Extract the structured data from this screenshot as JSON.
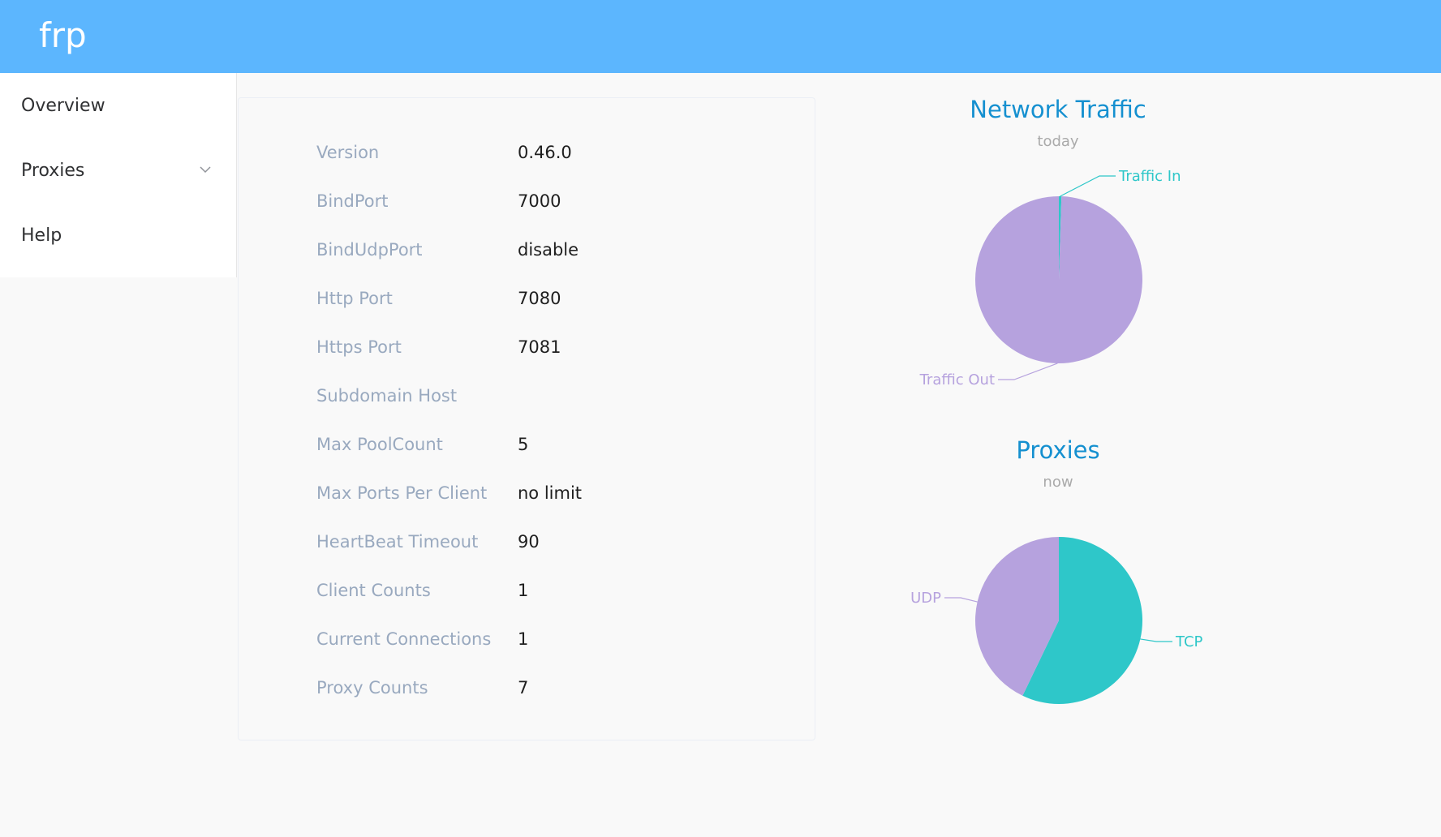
{
  "app": {
    "brand": "frp"
  },
  "sidebar": {
    "items": [
      {
        "label": "Overview"
      },
      {
        "label": "Proxies",
        "icon": "chevron-down-icon"
      },
      {
        "label": "Help"
      }
    ]
  },
  "overview": {
    "rows": [
      {
        "label": "Version",
        "value": "0.46.0"
      },
      {
        "label": "BindPort",
        "value": "7000"
      },
      {
        "label": "BindUdpPort",
        "value": "disable"
      },
      {
        "label": "Http Port",
        "value": "7080"
      },
      {
        "label": "Https Port",
        "value": "7081"
      },
      {
        "label": "Subdomain Host",
        "value": ""
      },
      {
        "label": "Max PoolCount",
        "value": "5"
      },
      {
        "label": "Max Ports Per Client",
        "value": "no limit"
      },
      {
        "label": "HeartBeat Timeout",
        "value": "90"
      },
      {
        "label": "Client Counts",
        "value": "1"
      },
      {
        "label": "Current Connections",
        "value": "1"
      },
      {
        "label": "Proxy Counts",
        "value": "7"
      }
    ]
  },
  "colors": {
    "header": "#5cb6fe",
    "title": "#1590d0",
    "teal": "#2ec7c9",
    "purple": "#b6a2de",
    "label": "#99a9bf"
  },
  "chart_data": [
    {
      "type": "pie",
      "title": "Network Traffic",
      "subtitle": "today",
      "series": [
        {
          "name": "Traffic In",
          "value": 0.5,
          "color": "#2ec7c9"
        },
        {
          "name": "Traffic Out",
          "value": 99.5,
          "color": "#b6a2de"
        }
      ]
    },
    {
      "type": "pie",
      "title": "Proxies",
      "subtitle": "now",
      "series": [
        {
          "name": "TCP",
          "value": 4,
          "color": "#2ec7c9"
        },
        {
          "name": "UDP",
          "value": 3,
          "color": "#b6a2de"
        }
      ]
    }
  ]
}
